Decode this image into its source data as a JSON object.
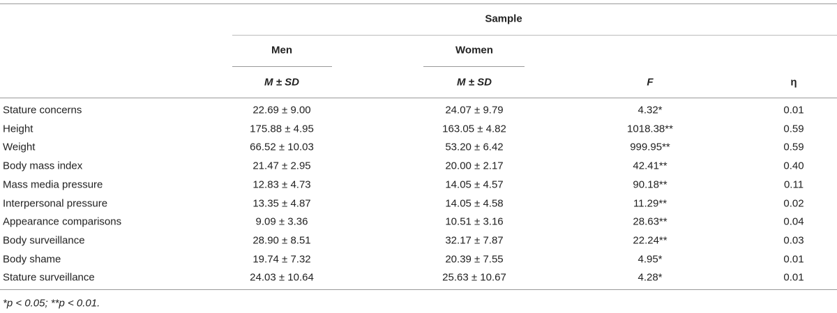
{
  "header": {
    "sample": "Sample",
    "groups": [
      "Men",
      "Women"
    ],
    "columns": [
      "M ± SD",
      "M ± SD",
      "F",
      "η"
    ]
  },
  "table": {
    "rows": [
      [
        "Stature concerns",
        "22.69 ± 9.00",
        "24.07 ± 9.79",
        "4.32*",
        "0.01"
      ],
      [
        "Height",
        "175.88 ± 4.95",
        "163.05 ± 4.82",
        "1018.38**",
        "0.59"
      ],
      [
        "Weight",
        "66.52 ± 10.03",
        "53.20 ± 6.42",
        "999.95**",
        "0.59"
      ],
      [
        "Body mass index",
        "21.47 ± 2.95",
        "20.00 ± 2.17",
        "42.41**",
        "0.40"
      ],
      [
        "Mass media pressure",
        "12.83 ± 4.73",
        "14.05 ± 4.57",
        "90.18**",
        "0.11"
      ],
      [
        "Interpersonal pressure",
        "13.35 ± 4.87",
        "14.05 ± 4.58",
        "11.29**",
        "0.02"
      ],
      [
        "Appearance comparisons",
        "9.09 ± 3.36",
        "10.51 ± 3.16",
        "28.63**",
        "0.04"
      ],
      [
        "Body surveillance",
        "28.90 ± 8.51",
        "32.17 ± 7.87",
        "22.24**",
        "0.03"
      ],
      [
        "Body shame",
        "19.74 ± 7.32",
        "20.39 ± 7.55",
        "4.95*",
        "0.01"
      ],
      [
        "Stature surveillance",
        "24.03 ± 10.64",
        "25.63 ± 10.67",
        "4.28*",
        "0.01"
      ]
    ]
  },
  "footnote": "*p < 0.05; **p < 0.01."
}
